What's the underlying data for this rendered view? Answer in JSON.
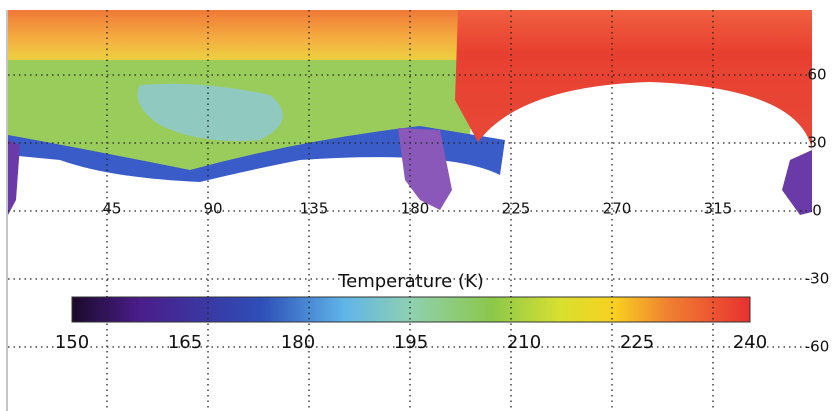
{
  "map": {
    "longitude_ticks": [
      45,
      90,
      135,
      180,
      225,
      270,
      315
    ],
    "lonlim": [
      0,
      360
    ],
    "latitude_ticks": [
      60,
      30,
      0,
      -30,
      -60
    ],
    "colorbar": {
      "title": "Temperature (K)",
      "range": [
        150,
        240
      ],
      "ticks": [
        150,
        165,
        180,
        195,
        210,
        225,
        240
      ]
    }
  }
}
